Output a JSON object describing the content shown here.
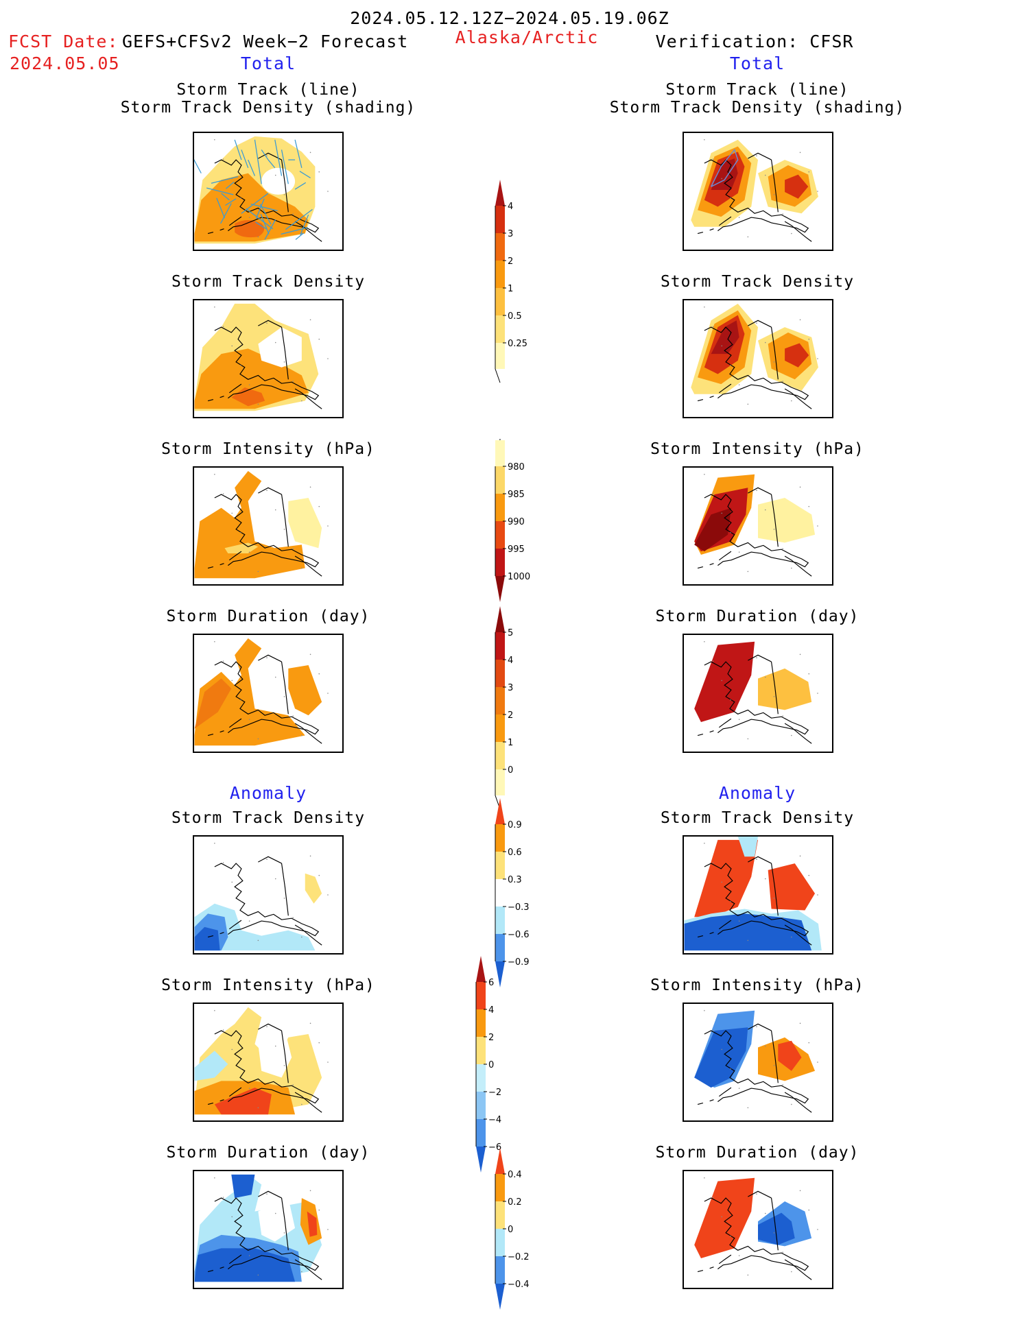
{
  "header": {
    "date_range": "2024.05.12.12Z−2024.05.19.06Z",
    "fcst_prefix": "FCST Date:",
    "fcst_model": "GEFS+CFSv2 Week−2 Forecast",
    "fcst_date": "2024.05.05",
    "region": "Alaska/Arctic",
    "verification": "Verification: CFSR",
    "left_total": "Total",
    "right_total": "Total",
    "left_anomaly": "Anomaly",
    "right_anomaly": "Anomaly"
  },
  "panel_titles": {
    "track_line": "Storm Track (line)",
    "track_shading": "Storm Track Density (shading)",
    "density": "Storm Track Density",
    "intensity": "Storm Intensity (hPa)",
    "duration": "Storm Duration (day)"
  },
  "colorbars": {
    "density_total": {
      "labels": [
        "0.25",
        "0.5",
        "1",
        "2",
        "3",
        "4"
      ],
      "colors": [
        "#fff8b8",
        "#fde27a",
        "#fdc040",
        "#f99a10",
        "#f06a10",
        "#d63010",
        "#a81414"
      ]
    },
    "intensity_total": {
      "labels": [
        "980",
        "985",
        "990",
        "995",
        "1000"
      ],
      "colors": [
        "#8b0a0a",
        "#c01616",
        "#e84a12",
        "#f99a10",
        "#fcd868",
        "#fff8b8"
      ]
    },
    "duration_total": {
      "labels": [
        "0",
        "1",
        "2",
        "3",
        "4",
        "5"
      ],
      "colors": [
        "#fff8b8",
        "#fde27a",
        "#f99a10",
        "#f07a10",
        "#e24a12",
        "#c01616",
        "#8b0a0a"
      ]
    },
    "density_anom": {
      "labels": [
        "−0.9",
        "−0.6",
        "−0.3",
        "0.3",
        "0.6",
        "0.9"
      ],
      "colors": [
        "#1c5fd0",
        "#4d94ea",
        "#b2e8f8",
        "#ffffff",
        "#fde27a",
        "#f99a10",
        "#f0441a"
      ]
    },
    "intensity_anom": {
      "labels": [
        "−6",
        "−4",
        "−2",
        "0",
        "2",
        "4",
        "6"
      ],
      "colors": [
        "#1c5fd0",
        "#4d94ea",
        "#8cc6f4",
        "#c4eefa",
        "#fde27a",
        "#f99a10",
        "#f0441a",
        "#a81414"
      ]
    },
    "duration_anom": {
      "labels": [
        "−0.4",
        "−0.2",
        "0",
        "0.2",
        "0.4"
      ],
      "colors": [
        "#1c5fd0",
        "#4d94ea",
        "#b2e8f8",
        "#fde27a",
        "#f99a10",
        "#f0441a"
      ]
    }
  },
  "map_colors": {
    "track_line": "#3a9ad4",
    "track_line_cfsr": "#6a8ad4"
  }
}
